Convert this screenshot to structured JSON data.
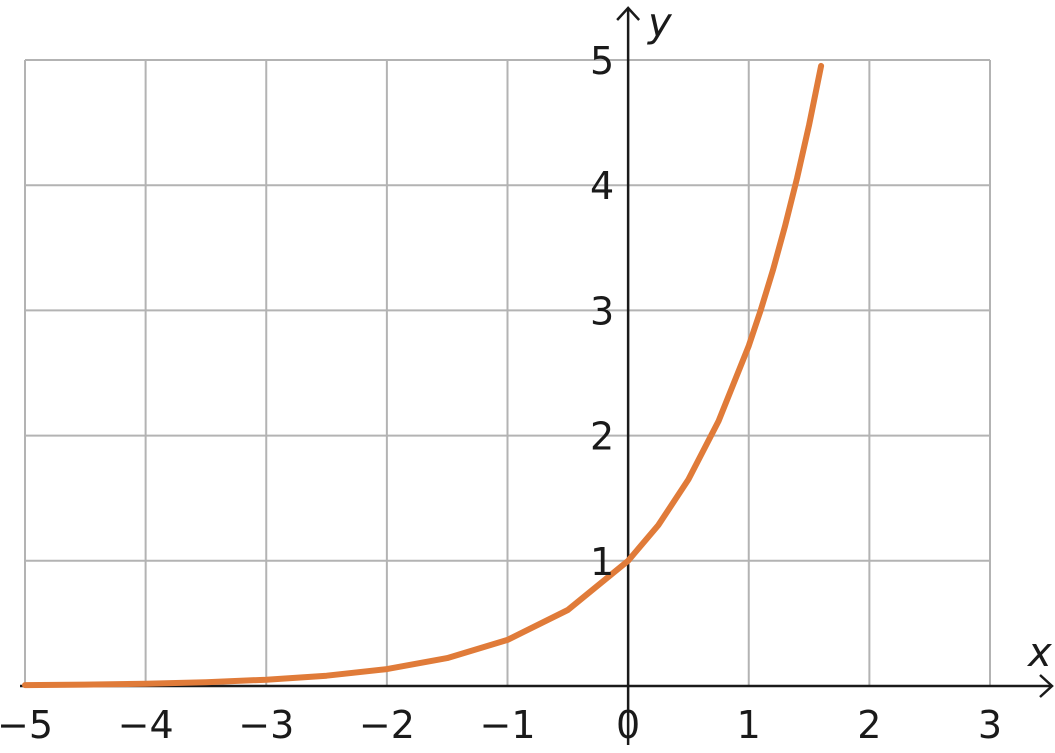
{
  "chart_data": {
    "type": "line",
    "xlabel": "x",
    "ylabel": "y",
    "xlim": [
      -5,
      3
    ],
    "ylim": [
      0,
      5
    ],
    "grid": true,
    "x_ticks": [
      -5,
      -4,
      -3,
      -2,
      -1,
      0,
      1,
      2,
      3
    ],
    "x_tick_labels": [
      "−5",
      "−4",
      "−3",
      "−2",
      "−1",
      "0",
      "1",
      "2",
      "3"
    ],
    "y_ticks": [
      1,
      2,
      3,
      4,
      5
    ],
    "y_tick_labels": [
      "1",
      "2",
      "3",
      "4",
      "5"
    ],
    "series": [
      {
        "color": "#e07b39",
        "x": [
          -5,
          -4.5,
          -4,
          -3.5,
          -3,
          -2.5,
          -2,
          -1.5,
          -1,
          -0.5,
          0,
          0.25,
          0.5,
          0.75,
          1,
          1.1,
          1.2,
          1.3,
          1.4,
          1.5,
          1.6
        ],
        "y": [
          0.007,
          0.011,
          0.018,
          0.03,
          0.05,
          0.082,
          0.135,
          0.223,
          0.368,
          0.607,
          1.0,
          1.284,
          1.649,
          2.117,
          2.718,
          3.004,
          3.32,
          3.669,
          4.055,
          4.482,
          4.953
        ]
      }
    ]
  }
}
